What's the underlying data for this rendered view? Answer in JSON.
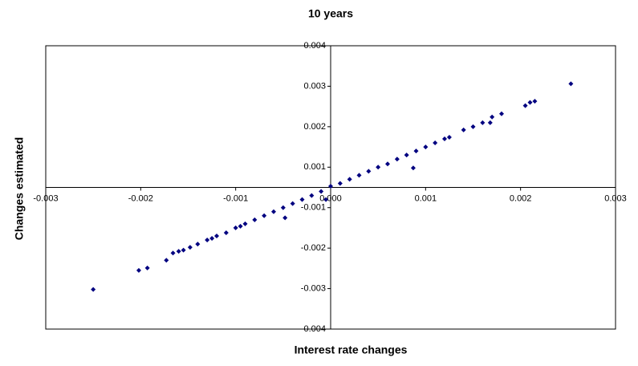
{
  "chart_data": {
    "type": "scatter",
    "title": "10 years",
    "xlabel": "Interest rate changes",
    "ylabel": "Changes estimated",
    "xlim": [
      -0.003,
      0.003
    ],
    "xticks": [
      {
        "value": -0.003,
        "label": "-0.003"
      },
      {
        "value": -0.002,
        "label": "-0.002"
      },
      {
        "value": -0.001,
        "label": "-0.001"
      },
      {
        "value": 0,
        "label": "0.000"
      },
      {
        "value": 0.001,
        "label": "0.001"
      },
      {
        "value": 0.002,
        "label": "0.002"
      },
      {
        "value": 0.003,
        "label": "0.003"
      }
    ],
    "ylim": [
      -0.0035,
      0.0035
    ],
    "yticks": [
      {
        "value": 0.0035,
        "label": "0.004"
      },
      {
        "value": 0.0025,
        "label": "0.003"
      },
      {
        "value": 0.0015,
        "label": "0.002"
      },
      {
        "value": 0.0005,
        "label": "0.001"
      },
      {
        "value": -0.0005,
        "label": "-0.001"
      },
      {
        "value": -0.0015,
        "label": "-0.002"
      },
      {
        "value": -0.0025,
        "label": "-0.003"
      },
      {
        "value": -0.0035,
        "label": "-0.004"
      }
    ],
    "color": "#000080",
    "x": [
      -0.0025,
      -0.00202,
      -0.00193,
      -0.00173,
      -0.00166,
      -0.0016,
      -0.00155,
      -0.00148,
      -0.0014,
      -0.0013,
      -0.00125,
      -0.0012,
      -0.0011,
      -0.001,
      -0.00095,
      -0.0009,
      -0.0008,
      -0.0007,
      -0.0006,
      -0.0005,
      -0.00048,
      -0.0004,
      -0.0003,
      -0.0002,
      -0.0001,
      -5e-05,
      0,
      0.0001,
      0.0002,
      0.0003,
      0.0004,
      0.0005,
      0.0006,
      0.0007,
      0.0008,
      0.00087,
      0.0009,
      0.001,
      0.0011,
      0.0012,
      0.00125,
      0.0014,
      0.0015,
      0.0016,
      0.00168,
      0.0017,
      0.0018,
      0.00205,
      0.0021,
      0.00215,
      0.00253
    ],
    "values": [
      -0.00252,
      -0.00205,
      -0.00199,
      -0.0018,
      -0.00162,
      -0.00158,
      -0.00155,
      -0.00148,
      -0.0014,
      -0.0013,
      -0.00126,
      -0.0012,
      -0.00112,
      -0.001,
      -0.00096,
      -0.0009,
      -0.0008,
      -0.0007,
      -0.0006,
      -0.0005,
      -0.00075,
      -0.0004,
      -0.0003,
      -0.0002,
      -0.0001,
      -0.0003,
      3e-05,
      0.0001,
      0.0002,
      0.0003,
      0.0004,
      0.0005,
      0.00058,
      0.0007,
      0.0008,
      0.00048,
      0.0009,
      0.001,
      0.0011,
      0.0012,
      0.00124,
      0.00142,
      0.0015,
      0.0016,
      0.0016,
      0.00174,
      0.00182,
      0.00202,
      0.0021,
      0.00213,
      0.00256
    ]
  }
}
